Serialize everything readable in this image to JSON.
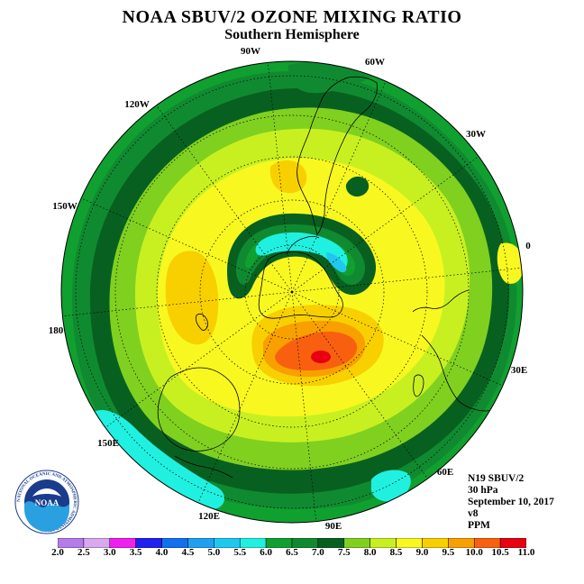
{
  "title": "NOAA SBUV/2 OZONE MIXING RATIO",
  "subtitle": "Southern Hemisphere",
  "longitude_labels": {
    "lon_90W": "90W",
    "lon_60W": "60W",
    "lon_120W": "120W",
    "lon_30W": "30W",
    "lon_150W": "150W",
    "lon_0": "0",
    "lon_180": "180",
    "lon_30E": "30E",
    "lon_150E": "150E",
    "lon_60E": "60E",
    "lon_120E": "120E",
    "lon_90E": "90E"
  },
  "info": {
    "instrument": "N19 SBUV/2",
    "level": "30 hPa",
    "date": "September 10, 2017",
    "version": "v8",
    "units": "PPM"
  },
  "logo": {
    "text": "NOAA",
    "ring_text": "NATIONAL OCEANIC AND ATMOSPHERIC ADMINISTRATION"
  },
  "colorbar": {
    "labels": [
      "2.0",
      "2.5",
      "3.0",
      "3.5",
      "4.0",
      "4.5",
      "5.0",
      "5.5",
      "6.0",
      "6.5",
      "7.0",
      "7.5",
      "8.0",
      "8.5",
      "9.0",
      "9.5",
      "10.0",
      "10.5",
      "11.0"
    ],
    "colors": [
      "#b57be8",
      "#d8a8f0",
      "#f020f0",
      "#2020f0",
      "#1070f0",
      "#20a0f0",
      "#20c8f0",
      "#20f0e0",
      "#10a030",
      "#108a30",
      "#086020",
      "#80d020",
      "#c8f020",
      "#f8f820",
      "#f8d000",
      "#f8a000",
      "#f86010",
      "#e80010",
      "#805030"
    ]
  },
  "colors": {
    "level_6_0": "#10a030",
    "level_6_5": "#108a30",
    "level_7_0": "#086020",
    "level_7_5": "#80d020",
    "level_8_0": "#c8f020",
    "level_8_5": "#f8f820",
    "level_9_0": "#f8d000",
    "level_9_5": "#f8a000",
    "level_10_0": "#f86010",
    "level_10_5": "#e80010",
    "level_5_5": "#20f0e0",
    "level_5_0": "#20c8f0"
  }
}
